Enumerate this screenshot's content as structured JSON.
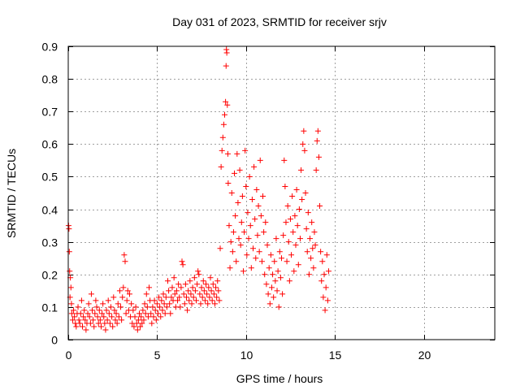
{
  "chart_data": {
    "type": "scatter",
    "title": "Day 031 of 2023, SRMTID for receiver srjv",
    "xlabel": "GPS time / hours",
    "ylabel": "SRMTID / TECUs",
    "xlim": [
      0,
      24
    ],
    "ylim": [
      0,
      0.9
    ],
    "xticks": [
      0,
      5,
      10,
      15,
      20
    ],
    "xtick_labels": [
      "0",
      "5",
      "10",
      "15",
      "20"
    ],
    "yticks": [
      0,
      0.1,
      0.2,
      0.3,
      0.4,
      0.5,
      0.6,
      0.7,
      0.8,
      0.9
    ],
    "ytick_labels": [
      "0",
      "0.1",
      "0.2",
      "0.3",
      "0.4",
      "0.5",
      "0.6",
      "0.7",
      "0.8",
      "0.9"
    ],
    "grid": true,
    "marker": "plus",
    "color": "#ff0000",
    "series": [
      {
        "name": "SRMTID",
        "points": [
          [
            0.02,
            0.35
          ],
          [
            0.04,
            0.34
          ],
          [
            0.06,
            0.27
          ],
          [
            0.08,
            0.21
          ],
          [
            0.1,
            0.13
          ],
          [
            0.12,
            0.19
          ],
          [
            0.15,
            0.16
          ],
          [
            0.18,
            0.11
          ],
          [
            0.2,
            0.08
          ],
          [
            0.25,
            0.06
          ],
          [
            0.3,
            0.09
          ],
          [
            0.35,
            0.07
          ],
          [
            0.4,
            0.05
          ],
          [
            0.45,
            0.04
          ],
          [
            0.5,
            0.08
          ],
          [
            0.55,
            0.1
          ],
          [
            0.6,
            0.06
          ],
          [
            0.65,
            0.05
          ],
          [
            0.7,
            0.08
          ],
          [
            0.75,
            0.12
          ],
          [
            0.8,
            0.04
          ],
          [
            0.85,
            0.07
          ],
          [
            0.9,
            0.09
          ],
          [
            0.95,
            0.06
          ],
          [
            1.0,
            0.03
          ],
          [
            1.05,
            0.05
          ],
          [
            1.1,
            0.08
          ],
          [
            1.15,
            0.11
          ],
          [
            1.2,
            0.07
          ],
          [
            1.25,
            0.05
          ],
          [
            1.3,
            0.14
          ],
          [
            1.35,
            0.09
          ],
          [
            1.4,
            0.06
          ],
          [
            1.45,
            0.04
          ],
          [
            1.5,
            0.08
          ],
          [
            1.55,
            0.12
          ],
          [
            1.6,
            0.1
          ],
          [
            1.65,
            0.07
          ],
          [
            1.7,
            0.05
          ],
          [
            1.75,
            0.09
          ],
          [
            1.8,
            0.06
          ],
          [
            1.85,
            0.04
          ],
          [
            1.9,
            0.08
          ],
          [
            1.95,
            0.11
          ],
          [
            2.0,
            0.07
          ],
          [
            2.05,
            0.05
          ],
          [
            2.1,
            0.03
          ],
          [
            2.15,
            0.09
          ],
          [
            2.2,
            0.06
          ],
          [
            2.25,
            0.12
          ],
          [
            2.3,
            0.08
          ],
          [
            2.35,
            0.05
          ],
          [
            2.4,
            0.1
          ],
          [
            2.45,
            0.07
          ],
          [
            2.5,
            0.04
          ],
          [
            2.55,
            0.13
          ],
          [
            2.6,
            0.09
          ],
          [
            2.65,
            0.06
          ],
          [
            2.7,
            0.08
          ],
          [
            2.75,
            0.05
          ],
          [
            2.8,
            0.11
          ],
          [
            2.85,
            0.07
          ],
          [
            2.9,
            0.15
          ],
          [
            2.95,
            0.1
          ],
          [
            3.0,
            0.06
          ],
          [
            3.05,
            0.13
          ],
          [
            3.1,
            0.16
          ],
          [
            3.15,
            0.26
          ],
          [
            3.2,
            0.24
          ],
          [
            3.25,
            0.08
          ],
          [
            3.3,
            0.12
          ],
          [
            3.35,
            0.15
          ],
          [
            3.4,
            0.09
          ],
          [
            3.45,
            0.14
          ],
          [
            3.5,
            0.07
          ],
          [
            3.55,
            0.11
          ],
          [
            3.6,
            0.05
          ],
          [
            3.65,
            0.09
          ],
          [
            3.7,
            0.04
          ],
          [
            3.75,
            0.07
          ],
          [
            3.8,
            0.1
          ],
          [
            3.85,
            0.05
          ],
          [
            3.9,
            0.03
          ],
          [
            3.95,
            0.06
          ],
          [
            4.0,
            0.08
          ],
          [
            4.05,
            0.04
          ],
          [
            4.1,
            0.07
          ],
          [
            4.15,
            0.05
          ],
          [
            4.2,
            0.09
          ],
          [
            4.25,
            0.06
          ],
          [
            4.3,
            0.11
          ],
          [
            4.35,
            0.08
          ],
          [
            4.4,
            0.14
          ],
          [
            4.45,
            0.1
          ],
          [
            4.5,
            0.07
          ],
          [
            4.55,
            0.16
          ],
          [
            4.6,
            0.12
          ],
          [
            4.65,
            0.08
          ],
          [
            4.7,
            0.05
          ],
          [
            4.75,
            0.1
          ],
          [
            4.8,
            0.07
          ],
          [
            4.85,
            0.12
          ],
          [
            4.9,
            0.09
          ],
          [
            4.95,
            0.06
          ],
          [
            5.0,
            0.11
          ],
          [
            5.05,
            0.08
          ],
          [
            5.1,
            0.13
          ],
          [
            5.15,
            0.1
          ],
          [
            5.2,
            0.07
          ],
          [
            5.25,
            0.12
          ],
          [
            5.3,
            0.09
          ],
          [
            5.35,
            0.14
          ],
          [
            5.4,
            0.11
          ],
          [
            5.45,
            0.08
          ],
          [
            5.5,
            0.13
          ],
          [
            5.55,
            0.1
          ],
          [
            5.6,
            0.18
          ],
          [
            5.65,
            0.15
          ],
          [
            5.7,
            0.11
          ],
          [
            5.75,
            0.08
          ],
          [
            5.8,
            0.13
          ],
          [
            5.85,
            0.16
          ],
          [
            5.9,
            0.12
          ],
          [
            5.95,
            0.19
          ],
          [
            6.0,
            0.14
          ],
          [
            6.05,
            0.1
          ],
          [
            6.1,
            0.15
          ],
          [
            6.15,
            0.12
          ],
          [
            6.2,
            0.17
          ],
          [
            6.25,
            0.13
          ],
          [
            6.3,
            0.1
          ],
          [
            6.35,
            0.16
          ],
          [
            6.4,
            0.24
          ],
          [
            6.45,
            0.23
          ],
          [
            6.5,
            0.14
          ],
          [
            6.55,
            0.11
          ],
          [
            6.6,
            0.17
          ],
          [
            6.65,
            0.13
          ],
          [
            6.7,
            0.09
          ],
          [
            6.75,
            0.15
          ],
          [
            6.8,
            0.12
          ],
          [
            6.85,
            0.18
          ],
          [
            6.9,
            0.14
          ],
          [
            6.95,
            0.11
          ],
          [
            7.0,
            0.16
          ],
          [
            7.05,
            0.13
          ],
          [
            7.1,
            0.19
          ],
          [
            7.15,
            0.15
          ],
          [
            7.2,
            0.12
          ],
          [
            7.25,
            0.17
          ],
          [
            7.3,
            0.21
          ],
          [
            7.35,
            0.2
          ],
          [
            7.4,
            0.14
          ],
          [
            7.45,
            0.11
          ],
          [
            7.5,
            0.16
          ],
          [
            7.55,
            0.13
          ],
          [
            7.6,
            0.18
          ],
          [
            7.65,
            0.15
          ],
          [
            7.7,
            0.12
          ],
          [
            7.75,
            0.17
          ],
          [
            7.8,
            0.14
          ],
          [
            7.85,
            0.11
          ],
          [
            7.9,
            0.16
          ],
          [
            7.95,
            0.13
          ],
          [
            8.0,
            0.19
          ],
          [
            8.05,
            0.15
          ],
          [
            8.1,
            0.12
          ],
          [
            8.15,
            0.17
          ],
          [
            8.2,
            0.14
          ],
          [
            8.25,
            0.11
          ],
          [
            8.3,
            0.16
          ],
          [
            8.35,
            0.13
          ],
          [
            8.4,
            0.18
          ],
          [
            8.45,
            0.15
          ],
          [
            8.5,
            0.12
          ],
          [
            8.55,
            0.28
          ],
          [
            8.6,
            0.53
          ],
          [
            8.65,
            0.58
          ],
          [
            8.7,
            0.62
          ],
          [
            8.75,
            0.66
          ],
          [
            8.8,
            0.69
          ],
          [
            8.85,
            0.73
          ],
          [
            8.88,
            0.84
          ],
          [
            8.9,
            0.89
          ],
          [
            8.92,
            0.88
          ],
          [
            8.95,
            0.72
          ],
          [
            8.98,
            0.57
          ],
          [
            9.0,
            0.48
          ],
          [
            9.05,
            0.35
          ],
          [
            9.1,
            0.22
          ],
          [
            9.15,
            0.3
          ],
          [
            9.2,
            0.45
          ],
          [
            9.25,
            0.27
          ],
          [
            9.3,
            0.33
          ],
          [
            9.35,
            0.51
          ],
          [
            9.4,
            0.38
          ],
          [
            9.45,
            0.24
          ],
          [
            9.5,
            0.57
          ],
          [
            9.55,
            0.42
          ],
          [
            9.6,
            0.31
          ],
          [
            9.65,
            0.52
          ],
          [
            9.7,
            0.29
          ],
          [
            9.75,
            0.36
          ],
          [
            9.8,
            0.44
          ],
          [
            9.85,
            0.21
          ],
          [
            9.9,
            0.33
          ],
          [
            9.95,
            0.58
          ],
          [
            10.0,
            0.47
          ],
          [
            10.05,
            0.26
          ],
          [
            10.1,
            0.39
          ],
          [
            10.15,
            0.31
          ],
          [
            10.2,
            0.5
          ],
          [
            10.25,
            0.35
          ],
          [
            10.3,
            0.22
          ],
          [
            10.35,
            0.43
          ],
          [
            10.4,
            0.28
          ],
          [
            10.45,
            0.53
          ],
          [
            10.5,
            0.37
          ],
          [
            10.55,
            0.25
          ],
          [
            10.6,
            0.46
          ],
          [
            10.65,
            0.32
          ],
          [
            10.7,
            0.41
          ],
          [
            10.75,
            0.27
          ],
          [
            10.8,
            0.55
          ],
          [
            10.85,
            0.38
          ],
          [
            10.9,
            0.24
          ],
          [
            10.95,
            0.44
          ],
          [
            11.0,
            0.33
          ],
          [
            11.05,
            0.2
          ],
          [
            11.1,
            0.36
          ],
          [
            11.15,
            0.17
          ],
          [
            11.2,
            0.29
          ],
          [
            11.25,
            0.14
          ],
          [
            11.3,
            0.22
          ],
          [
            11.35,
            0.11
          ],
          [
            11.4,
            0.26
          ],
          [
            11.45,
            0.16
          ],
          [
            11.5,
            0.2
          ],
          [
            11.55,
            0.13
          ],
          [
            11.6,
            0.24
          ],
          [
            11.65,
            0.18
          ],
          [
            11.7,
            0.31
          ],
          [
            11.75,
            0.15
          ],
          [
            11.8,
            0.21
          ],
          [
            11.85,
            0.1
          ],
          [
            11.9,
            0.27
          ],
          [
            11.95,
            0.19
          ],
          [
            12.0,
            0.25
          ],
          [
            12.05,
            0.14
          ],
          [
            12.1,
            0.32
          ],
          [
            12.15,
            0.55
          ],
          [
            12.2,
            0.47
          ],
          [
            12.25,
            0.36
          ],
          [
            12.3,
            0.24
          ],
          [
            12.35,
            0.41
          ],
          [
            12.4,
            0.3
          ],
          [
            12.45,
            0.18
          ],
          [
            12.5,
            0.37
          ],
          [
            12.55,
            0.26
          ],
          [
            12.6,
            0.44
          ],
          [
            12.65,
            0.33
          ],
          [
            12.7,
            0.21
          ],
          [
            12.75,
            0.38
          ],
          [
            12.8,
            0.29
          ],
          [
            12.85,
            0.46
          ],
          [
            12.9,
            0.35
          ],
          [
            12.95,
            0.23
          ],
          [
            13.0,
            0.4
          ],
          [
            13.05,
            0.31
          ],
          [
            13.1,
            0.52
          ],
          [
            13.15,
            0.43
          ],
          [
            13.2,
            0.6
          ],
          [
            13.25,
            0.64
          ],
          [
            13.3,
            0.58
          ],
          [
            13.35,
            0.45
          ],
          [
            13.4,
            0.34
          ],
          [
            13.45,
            0.27
          ],
          [
            13.5,
            0.39
          ],
          [
            13.55,
            0.2
          ],
          [
            13.6,
            0.31
          ],
          [
            13.65,
            0.25
          ],
          [
            13.7,
            0.36
          ],
          [
            13.75,
            0.28
          ],
          [
            13.8,
            0.22
          ],
          [
            13.85,
            0.33
          ],
          [
            13.9,
            0.29
          ],
          [
            13.95,
            0.52
          ],
          [
            14.0,
            0.61
          ],
          [
            14.05,
            0.64
          ],
          [
            14.1,
            0.56
          ],
          [
            14.15,
            0.41
          ],
          [
            14.2,
            0.27
          ],
          [
            14.25,
            0.18
          ],
          [
            14.3,
            0.24
          ],
          [
            14.35,
            0.13
          ],
          [
            14.4,
            0.2
          ],
          [
            14.45,
            0.09
          ],
          [
            14.5,
            0.16
          ],
          [
            14.55,
            0.26
          ],
          [
            14.6,
            0.12
          ],
          [
            14.65,
            0.21
          ]
        ]
      }
    ]
  }
}
